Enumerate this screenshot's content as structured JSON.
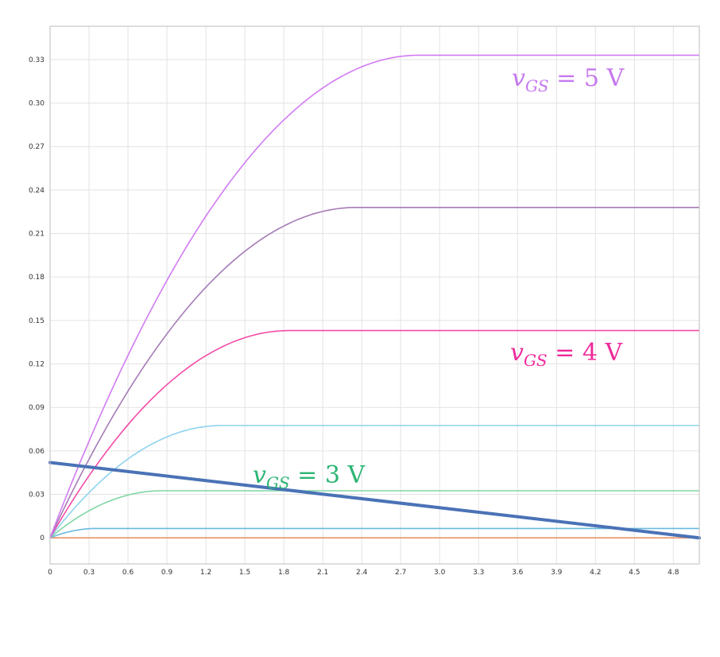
{
  "chart_data": {
    "type": "line",
    "title": "",
    "xlabel": "",
    "ylabel": "",
    "xlim": [
      0,
      5
    ],
    "ylim": [
      -0.018,
      0.353
    ],
    "grid": true,
    "legend": "none",
    "x_ticks": [
      "0",
      "0.3",
      "0.6",
      "0.9",
      "1.2",
      "1.5",
      "1.8",
      "2.1",
      "2.4",
      "2.7",
      "3.0",
      "3.3",
      "3.6",
      "3.9",
      "4.2",
      "4.5",
      "4.8"
    ],
    "y_ticks": [
      "0",
      "0.03",
      "0.06",
      "0.09",
      "0.12",
      "0.15",
      "0.18",
      "0.21",
      "0.24",
      "0.27",
      "0.30",
      "0.33"
    ],
    "series": [
      {
        "color": "#e8956a",
        "vov": 0,
        "isat": 0
      },
      {
        "color": "#6ab8e0",
        "vov": 0.36,
        "isat": 0.0065
      },
      {
        "color": "#7fd6a4",
        "vov": 0.86,
        "isat": 0.0325
      },
      {
        "color": "#8fd3ef",
        "vov": 1.32,
        "isat": 0.0775
      },
      {
        "color": "#f34ba8",
        "vov": 1.84,
        "isat": 0.143
      },
      {
        "color": "#a57bb6",
        "vov": 2.36,
        "isat": 0.228
      },
      {
        "color": "#d27bf3",
        "vov": 2.84,
        "isat": 0.333
      }
    ],
    "load_line": {
      "color": "#4a72b6",
      "x": [
        0,
        5
      ],
      "y": [
        0.052,
        0
      ]
    },
    "annotations": [
      {
        "id": "vgs5",
        "var": "v",
        "sub": "GS",
        "rest": " = 5 V",
        "color": "#c678ee"
      },
      {
        "id": "vgs4",
        "var": "v",
        "sub": "GS",
        "rest": " = 4 V",
        "color": "#ee2a9b"
      },
      {
        "id": "vgs3",
        "var": "v",
        "sub": "GS",
        "rest": " = 3 V",
        "color": "#2bb573"
      }
    ]
  }
}
